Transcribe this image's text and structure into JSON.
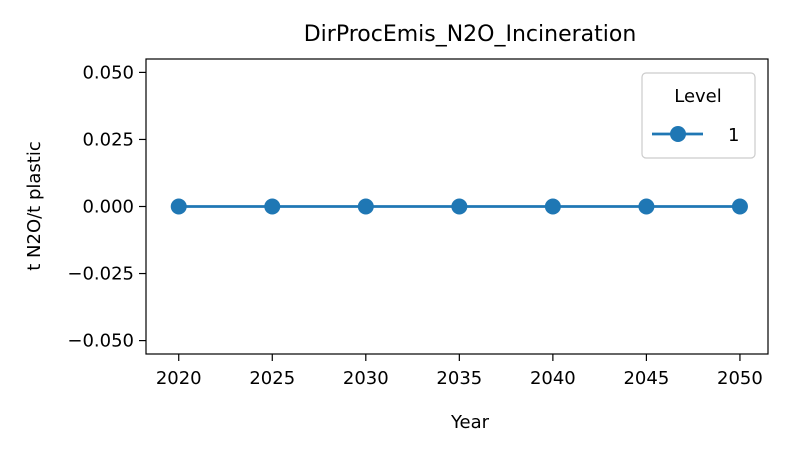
{
  "chart_data": {
    "type": "line",
    "title": "DirProcEmis_N2O_Incineration",
    "xlabel": "Year",
    "ylabel": "t N2O/t plastic",
    "x": [
      2020,
      2025,
      2030,
      2035,
      2040,
      2045,
      2050
    ],
    "xlim": [
      2018.25,
      2051.5
    ],
    "ylim": [
      -0.055,
      0.055
    ],
    "xticks": [
      "2020",
      "2025",
      "2030",
      "2035",
      "2040",
      "2045",
      "2050"
    ],
    "yticks": [
      0.05,
      0.025,
      0.0,
      -0.025,
      -0.05
    ],
    "ytick_labels": [
      "0.050",
      "0.025",
      "0.000",
      "−0.025",
      "−0.050"
    ],
    "series": [
      {
        "name": "1",
        "color": "#1f77b4",
        "marker": "circle",
        "values": [
          0,
          0,
          0,
          0,
          0,
          0,
          0
        ]
      }
    ],
    "legend": {
      "title": "Level",
      "position": "top-right"
    },
    "grid": false
  }
}
